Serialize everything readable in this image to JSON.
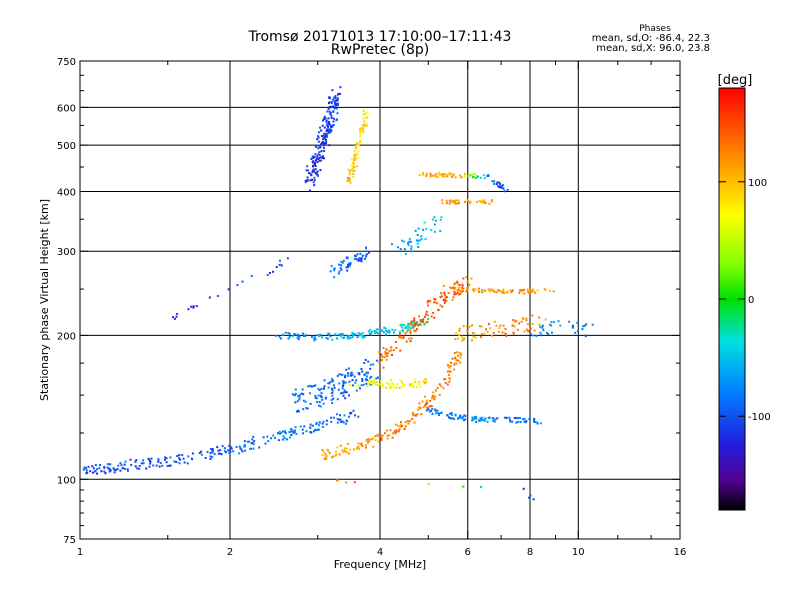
{
  "chart_data": {
    "type": "scatter",
    "title": "Tromsø 20171013 17:10:00–17:11:43",
    "subtitle": "RwPretec (8p)",
    "xlabel": "Frequency [MHz]",
    "ylabel": "Stationary phase Virtual Height [km]",
    "x_scale": "log",
    "y_scale": "log",
    "xlim": [
      1,
      16
    ],
    "ylim": [
      75,
      750
    ],
    "x_ticks": [
      1,
      2,
      4,
      6,
      8,
      10,
      16
    ],
    "x_tick_labels": [
      "1",
      "2",
      "4",
      "6",
      "8",
      "10",
      "16"
    ],
    "y_ticks": [
      75,
      100,
      200,
      300,
      400,
      500,
      600,
      750
    ],
    "y_tick_labels": [
      "75",
      "100",
      "200",
      "300",
      "400",
      "500",
      "600",
      "750"
    ],
    "grid_x": [
      2,
      4,
      6,
      8,
      10
    ],
    "grid_y": [
      100,
      200,
      300,
      400,
      500,
      600
    ],
    "grid": true,
    "stats": {
      "heading": "Phases",
      "line_o": "mean, sd,O: -86.4, 22.3",
      "line_x": "mean, sd,X:  96.0, 23.8"
    },
    "colorbar": {
      "label": "[deg]",
      "range": [
        -180,
        180
      ],
      "tick_values": [
        100,
        0,
        -100
      ],
      "tick_labels": [
        "100",
        "0",
        "-100"
      ]
    },
    "traces": [
      {
        "points": [
          [
            1.0,
            103,
            -105
          ],
          [
            1.1,
            105,
            -110
          ],
          [
            1.2,
            106,
            -100
          ],
          [
            1.35,
            108,
            -105
          ],
          [
            1.5,
            109,
            -100
          ],
          [
            1.7,
            111,
            -95
          ],
          [
            1.9,
            114,
            -100
          ],
          [
            2.1,
            117,
            -90
          ],
          [
            2.3,
            120,
            -85
          ],
          [
            2.6,
            124,
            -80
          ],
          [
            2.9,
            128,
            -90
          ],
          [
            3.2,
            132,
            -95
          ],
          [
            3.6,
            137,
            -90
          ]
        ],
        "spread_x": 0.03,
        "spread_y": 0.025,
        "n": 5
      },
      {
        "points": [
          [
            2.9,
            420,
            -110
          ],
          [
            3.0,
            470,
            -115
          ],
          [
            3.1,
            520,
            -110
          ],
          [
            3.2,
            580,
            -105
          ],
          [
            3.25,
            630,
            -110
          ]
        ],
        "spread_x": 0.025,
        "spread_y": 0.05,
        "n": 12
      },
      {
        "points": [
          [
            3.45,
            420,
            100
          ],
          [
            3.55,
            460,
            95
          ],
          [
            3.65,
            520,
            90
          ],
          [
            3.75,
            580,
            85
          ]
        ],
        "spread_x": 0.012,
        "spread_y": 0.04,
        "n": 6
      },
      {
        "points": [
          [
            2.5,
            200,
            -70
          ],
          [
            3.0,
            198,
            -60
          ],
          [
            3.5,
            200,
            -55
          ],
          [
            4.0,
            203,
            -45
          ],
          [
            4.5,
            208,
            -30
          ],
          [
            5.0,
            215,
            -20
          ]
        ],
        "spread_x": 0.03,
        "spread_y": 0.015,
        "n": 7
      },
      {
        "points": [
          [
            3.0,
            112,
            115
          ],
          [
            3.5,
            116,
            110
          ],
          [
            4.0,
            122,
            120
          ],
          [
            4.5,
            130,
            125
          ],
          [
            5.0,
            145,
            130
          ],
          [
            5.5,
            165,
            125
          ],
          [
            5.8,
            185,
            120
          ]
        ],
        "spread_x": 0.02,
        "spread_y": 0.025,
        "n": 7
      },
      {
        "points": [
          [
            4.0,
            175,
            135
          ],
          [
            4.5,
            200,
            140
          ],
          [
            5.0,
            225,
            145
          ],
          [
            5.5,
            245,
            140
          ],
          [
            6.0,
            255,
            130
          ]
        ],
        "spread_x": 0.03,
        "spread_y": 0.04,
        "n": 8
      },
      {
        "points": [
          [
            5.5,
            250,
            115
          ],
          [
            6.5,
            248,
            110
          ],
          [
            7.5,
            247,
            115
          ],
          [
            9.0,
            248,
            110
          ]
        ],
        "spread_x": 0.03,
        "spread_y": 0.01,
        "n": 6
      },
      {
        "points": [
          [
            4.8,
            435,
            100
          ],
          [
            5.3,
            433,
            110
          ],
          [
            5.8,
            432,
            105
          ],
          [
            6.6,
            430,
            -100
          ],
          [
            7.2,
            400,
            -105
          ]
        ],
        "spread_x": 0.015,
        "spread_y": 0.01,
        "n": 5
      },
      {
        "points": [
          [
            5.0,
            140,
            -80
          ],
          [
            5.5,
            136,
            -85
          ],
          [
            6.0,
            134,
            -75
          ],
          [
            6.5,
            133,
            -70
          ],
          [
            7.5,
            133,
            -90
          ],
          [
            8.5,
            132,
            -80
          ]
        ],
        "spread_x": 0.02,
        "spread_y": 0.012,
        "n": 5
      },
      {
        "points": [
          [
            5.5,
            200,
            110
          ],
          [
            6.5,
            205,
            120
          ],
          [
            7.5,
            210,
            130
          ],
          [
            8.5,
            215,
            125
          ]
        ],
        "spread_x": 0.03,
        "spread_y": 0.04,
        "n": 6
      },
      {
        "points": [
          [
            3.5,
            160,
            60
          ],
          [
            4.0,
            158,
            70
          ],
          [
            4.5,
            158,
            80
          ],
          [
            5.0,
            160,
            90
          ]
        ],
        "spread_x": 0.03,
        "spread_y": 0.02,
        "n": 5
      },
      {
        "points": [
          [
            2.7,
            145,
            -90
          ],
          [
            3.0,
            150,
            -85
          ],
          [
            3.3,
            155,
            -95
          ],
          [
            3.6,
            162,
            -90
          ],
          [
            3.9,
            170,
            -85
          ]
        ],
        "spread_x": 0.03,
        "spread_y": 0.06,
        "n": 9
      },
      {
        "points": [
          [
            4.3,
            300,
            -70
          ],
          [
            4.8,
            320,
            -60
          ],
          [
            5.3,
            350,
            -40
          ]
        ],
        "spread_x": 0.025,
        "spread_y": 0.04,
        "n": 5
      },
      {
        "points": [
          [
            5.3,
            380,
            110
          ],
          [
            6.0,
            380,
            120
          ],
          [
            6.8,
            380,
            105
          ]
        ],
        "spread_x": 0.015,
        "spread_y": 0.01,
        "n": 5
      },
      {
        "points": [
          [
            8.0,
            200,
            -80
          ],
          [
            9.0,
            210,
            -70
          ],
          [
            10.5,
            205,
            -90
          ]
        ],
        "spread_x": 0.02,
        "spread_y": 0.03,
        "n": 4
      },
      {
        "points": [
          [
            3.2,
            270,
            -90
          ],
          [
            3.4,
            280,
            -85
          ],
          [
            3.6,
            290,
            -95
          ],
          [
            3.8,
            300,
            -90
          ]
        ],
        "spread_x": 0.02,
        "spread_y": 0.03,
        "n": 4
      },
      {
        "points": [
          [
            2.4,
            270,
            -110
          ],
          [
            2.6,
            290,
            -100
          ],
          [
            1.7,
            230,
            -120
          ],
          [
            1.5,
            215,
            -110
          ]
        ],
        "spread_x": 0.01,
        "spread_y": 0.01,
        "n": 2
      },
      {
        "points": [
          [
            3.3,
            100,
            140
          ],
          [
            3.8,
            98,
            150
          ],
          [
            7.8,
            95,
            -110
          ],
          [
            8.1,
            90,
            -120
          ]
        ],
        "spread_x": 0.01,
        "spread_y": 0.01,
        "n": 1
      }
    ]
  }
}
